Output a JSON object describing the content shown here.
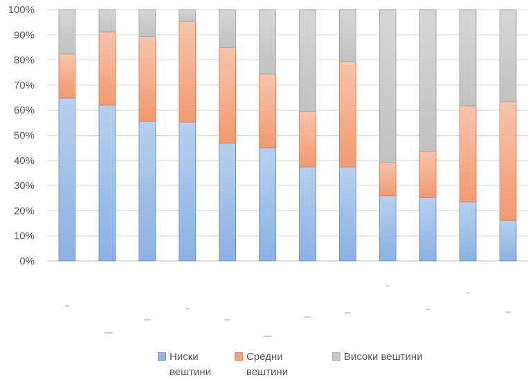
{
  "chart_data": {
    "type": "bar",
    "stacked": true,
    "percent": true,
    "categories": [
      "",
      "",
      "",
      "",
      "",
      "",
      "",
      "",
      "",
      "",
      "",
      ""
    ],
    "series": [
      {
        "name": "Ниски вештини",
        "color": "#8fb4e3",
        "values": [
          64.8,
          62.0,
          55.6,
          55.3,
          46.9,
          45.0,
          37.4,
          37.4,
          26.0,
          25.2,
          23.5,
          16.2
        ]
      },
      {
        "name": "Средни вештини",
        "color": "#f4a27c",
        "values": [
          17.6,
          29.2,
          33.8,
          40.1,
          38.1,
          29.4,
          22.0,
          41.9,
          13.0,
          18.5,
          38.2,
          47.2
        ]
      },
      {
        "name": "Високи вештини",
        "color": "#c9c9c9",
        "values": [
          17.6,
          8.8,
          10.6,
          4.6,
          15.0,
          25.6,
          40.6,
          20.7,
          61.0,
          56.3,
          38.3,
          36.6
        ]
      }
    ],
    "yticks": [
      "0%",
      "10%",
      "20%",
      "30%",
      "40%",
      "50%",
      "60%",
      "70%",
      "80%",
      "90%",
      "100%"
    ],
    "ylim": [
      0,
      100
    ],
    "grid": true,
    "legend": "bottom"
  }
}
